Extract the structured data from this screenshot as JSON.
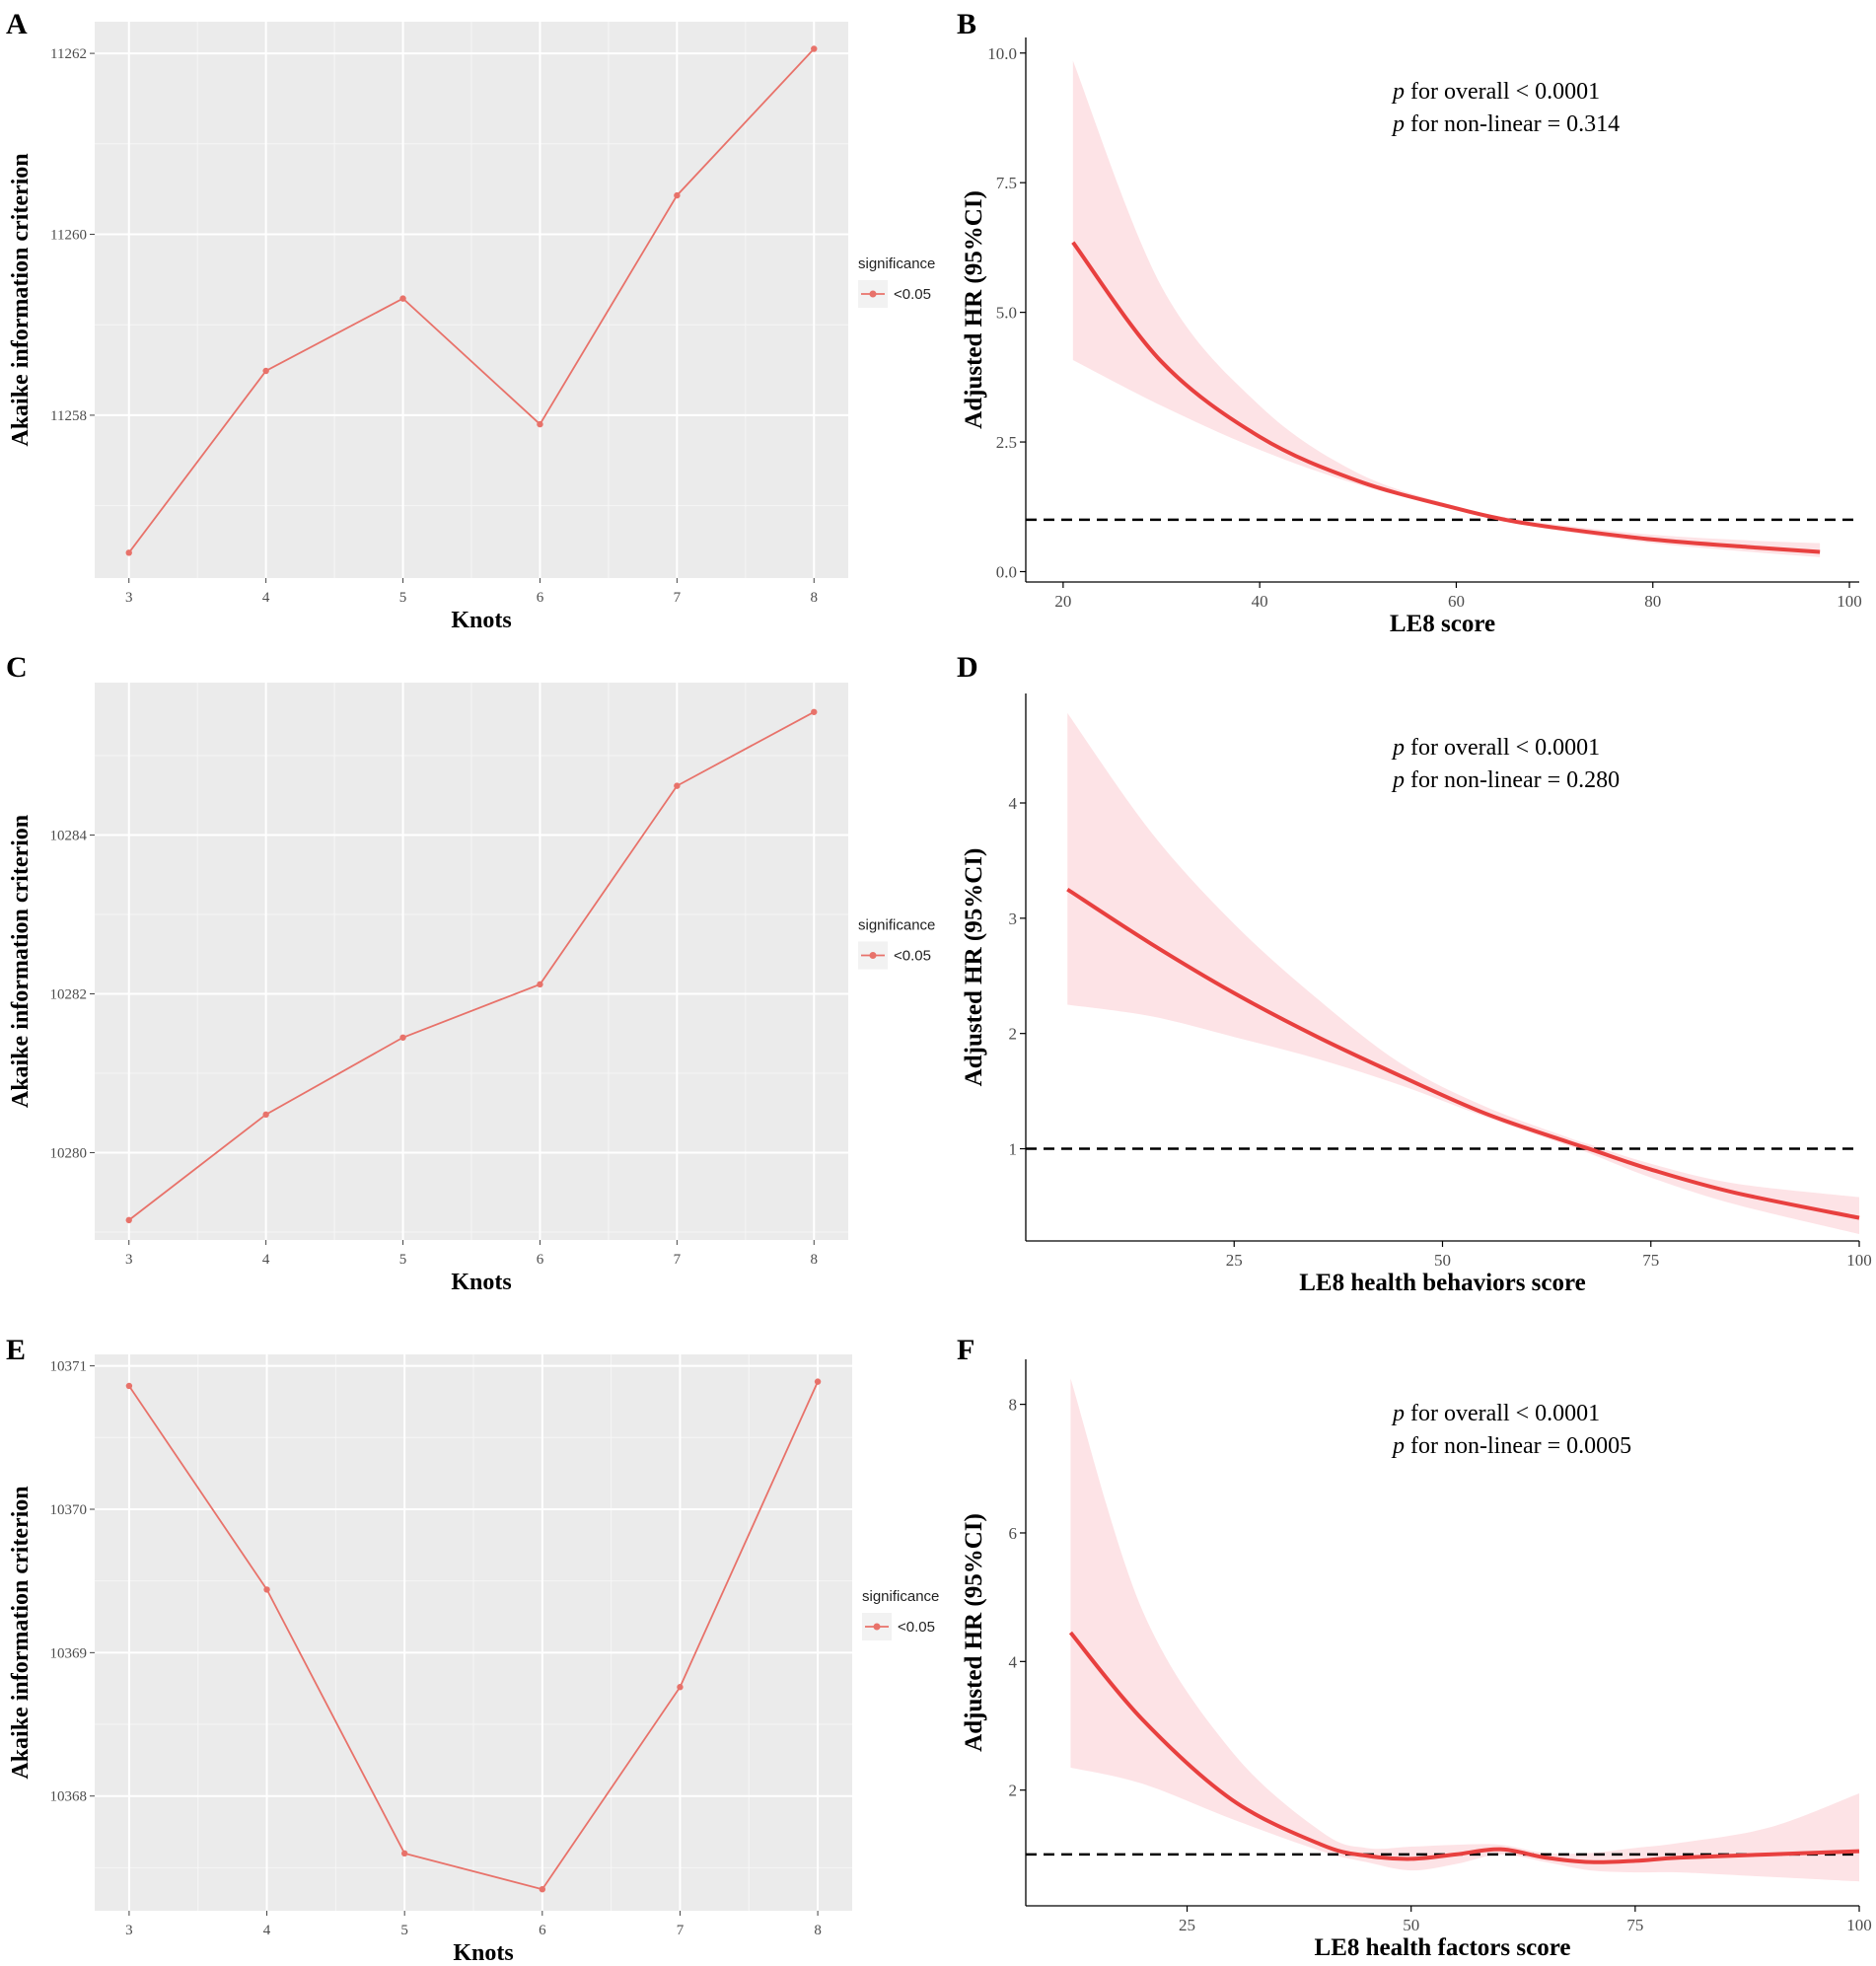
{
  "chart_data": [
    {
      "panel": "A",
      "type": "line",
      "xlabel": "Knots",
      "ylabel": "Akaike information criterion",
      "x": [
        3,
        4,
        5,
        6,
        7,
        8
      ],
      "values": [
        11256.48,
        11258.49,
        11259.29,
        11257.9,
        11260.43,
        11262.05
      ],
      "xlim": [
        2.75,
        8.25
      ],
      "ylim": [
        11256.2,
        11262.35
      ],
      "yticks": [
        11258,
        11260,
        11262
      ],
      "ytick_labels": [
        "11258",
        "11260",
        "11262"
      ],
      "xtick_labels": [
        "3",
        "4",
        "5",
        "6",
        "7",
        "8"
      ],
      "legend": {
        "title": "significance",
        "entries": [
          "<0.05"
        ]
      },
      "color": "#e8726a"
    },
    {
      "panel": "B",
      "type": "area",
      "xlabel": "LE8 score",
      "ylabel": "Adjusted HR (95%CI)",
      "xlim": [
        16.2,
        101
      ],
      "ylim": [
        -0.2,
        10.3
      ],
      "xticks": [
        20,
        40,
        60,
        80,
        100
      ],
      "xtick_labels": [
        "20",
        "40",
        "60",
        "80",
        "100"
      ],
      "yticks": [
        0,
        2.5,
        5,
        7.5,
        10
      ],
      "ytick_labels": [
        "0.0",
        "2.5",
        "5.0",
        "7.5",
        "10.0"
      ],
      "reference_line": 1,
      "annotation": [
        "for overall < 0.0001",
        "for non-linear = 0.314"
      ],
      "annotation_prefix": "p",
      "curve": {
        "x": [
          21,
          30,
          40,
          50,
          60,
          65,
          70,
          80,
          90,
          97
        ],
        "hr": [
          6.35,
          4.05,
          2.6,
          1.75,
          1.22,
          1.0,
          0.85,
          0.62,
          0.47,
          0.38
        ],
        "lower": [
          4.08,
          3.2,
          2.35,
          1.68,
          1.2,
          0.98,
          0.8,
          0.55,
          0.38,
          0.28
        ],
        "upper": [
          9.85,
          5.5,
          3.2,
          1.9,
          1.26,
          1.05,
          0.91,
          0.71,
          0.6,
          0.55
        ]
      },
      "line_color": "#e8403f",
      "band_color": "#fde3e6"
    },
    {
      "panel": "C",
      "type": "line",
      "xlabel": "Knots",
      "ylabel": "Akaike information criterion",
      "x": [
        3,
        4,
        5,
        6,
        7,
        8
      ],
      "values": [
        10279.15,
        10280.48,
        10281.45,
        10282.12,
        10284.62,
        10285.55
      ],
      "xlim": [
        2.75,
        8.25
      ],
      "ylim": [
        10278.9,
        10285.92
      ],
      "yticks": [
        10280,
        10282,
        10284
      ],
      "ytick_labels": [
        "10280",
        "10282",
        "10284"
      ],
      "xtick_labels": [
        "3",
        "4",
        "5",
        "6",
        "7",
        "8"
      ],
      "legend": {
        "title": "significance",
        "entries": [
          "<0.05"
        ]
      },
      "color": "#e8726a"
    },
    {
      "panel": "D",
      "type": "area",
      "xlabel": "LE8 health behaviors score",
      "ylabel": "Adjusted HR (95%CI)",
      "xlim": [
        0,
        100
      ],
      "ylim": [
        0.2,
        4.95
      ],
      "xticks": [
        25,
        50,
        75,
        100
      ],
      "xtick_labels": [
        "25",
        "50",
        "75",
        "100"
      ],
      "yticks": [
        1,
        2,
        3,
        4
      ],
      "ytick_labels": [
        "1",
        "2",
        "3",
        "4"
      ],
      "reference_line": 1,
      "annotation": [
        "for overall < 0.0001",
        "for non-linear = 0.280"
      ],
      "annotation_prefix": "p",
      "curve": {
        "x": [
          5,
          15,
          25,
          35,
          45,
          55,
          65,
          68,
          75,
          85,
          100
        ],
        "hr": [
          3.25,
          2.78,
          2.35,
          1.97,
          1.63,
          1.31,
          1.06,
          0.99,
          0.82,
          0.62,
          0.4
        ],
        "lower": [
          2.25,
          2.15,
          1.97,
          1.78,
          1.55,
          1.28,
          1.03,
          0.95,
          0.75,
          0.52,
          0.26
        ],
        "upper": [
          4.78,
          3.75,
          2.95,
          2.3,
          1.74,
          1.37,
          1.1,
          1.03,
          0.87,
          0.7,
          0.58
        ]
      },
      "line_color": "#e8403f",
      "band_color": "#fde3e6"
    },
    {
      "panel": "E",
      "type": "line",
      "xlabel": "Knots",
      "ylabel": "Akaike information criterion",
      "x": [
        3,
        4,
        5,
        6,
        7,
        8
      ],
      "values": [
        10370.86,
        10369.44,
        10367.6,
        10367.35,
        10368.76,
        10370.89
      ],
      "xlim": [
        2.75,
        8.25
      ],
      "ylim": [
        10367.2,
        10371.08
      ],
      "yticks": [
        10368,
        10369,
        10370,
        10371
      ],
      "ytick_labels": [
        "10368",
        "10369",
        "10370",
        "10371"
      ],
      "xtick_labels": [
        "3",
        "4",
        "5",
        "6",
        "7",
        "8"
      ],
      "legend": {
        "title": "significance",
        "entries": [
          "<0.05"
        ]
      },
      "color": "#e8726a"
    },
    {
      "panel": "F",
      "type": "area",
      "xlabel": "LE8 health factors score",
      "ylabel": "Adjusted HR (95%CI)",
      "xlim": [
        7,
        100
      ],
      "ylim": [
        0.2,
        8.7
      ],
      "xticks": [
        25,
        50,
        75,
        100
      ],
      "xtick_labels": [
        "25",
        "50",
        "75",
        "100"
      ],
      "yticks": [
        2,
        4,
        6,
        8
      ],
      "ytick_labels": [
        "2",
        "4",
        "6",
        "8"
      ],
      "reference_line": 1,
      "annotation": [
        "for overall < 0.0001",
        "for non-linear = 0.0005"
      ],
      "annotation_prefix": "p",
      "curve": {
        "x": [
          12,
          20,
          30,
          40,
          45,
          50,
          55,
          60,
          65,
          70,
          75,
          80,
          90,
          100
        ],
        "hr": [
          4.45,
          3.1,
          1.85,
          1.15,
          0.98,
          0.93,
          1.0,
          1.08,
          0.95,
          0.88,
          0.9,
          0.95,
          1.0,
          1.05
        ],
        "lower": [
          2.35,
          2.1,
          1.55,
          1.05,
          0.88,
          0.75,
          0.85,
          1.0,
          0.88,
          0.75,
          0.72,
          0.72,
          0.65,
          0.58
        ],
        "upper": [
          8.4,
          4.8,
          2.6,
          1.35,
          1.1,
          1.12,
          1.15,
          1.15,
          1.02,
          1.02,
          1.1,
          1.18,
          1.42,
          1.95
        ]
      },
      "line_color": "#e8403f",
      "band_color": "#fde3e6"
    }
  ]
}
